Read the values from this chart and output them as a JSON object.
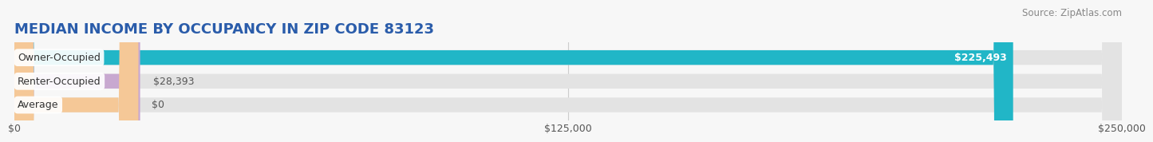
{
  "title": "MEDIAN INCOME BY OCCUPANCY IN ZIP CODE 83123",
  "source": "Source: ZipAtlas.com",
  "categories": [
    "Owner-Occupied",
    "Renter-Occupied",
    "Average"
  ],
  "values": [
    225493,
    28393,
    0
  ],
  "bar_colors": [
    "#21b6c7",
    "#c8a8d0",
    "#f5c897"
  ],
  "value_labels": [
    "$225,493",
    "$28,393",
    "$0"
  ],
  "xlim": [
    0,
    250000
  ],
  "xticks": [
    0,
    125000,
    250000
  ],
  "xticklabels": [
    "$0",
    "$125,000",
    "$250,000"
  ],
  "bar_height": 0.62,
  "bg_color": "#f7f7f7",
  "bar_bg_color": "#e3e3e3",
  "title_fontsize": 13,
  "source_fontsize": 8.5,
  "label_fontsize": 9,
  "value_fontsize": 9,
  "tick_fontsize": 9,
  "title_color": "#2a5caa",
  "source_color": "#888888",
  "label_text_color": "#333333",
  "value_color_inside": "#ffffff",
  "value_color_outside": "#555555",
  "grid_color": "#cccccc",
  "avg_bar_width": 28000
}
